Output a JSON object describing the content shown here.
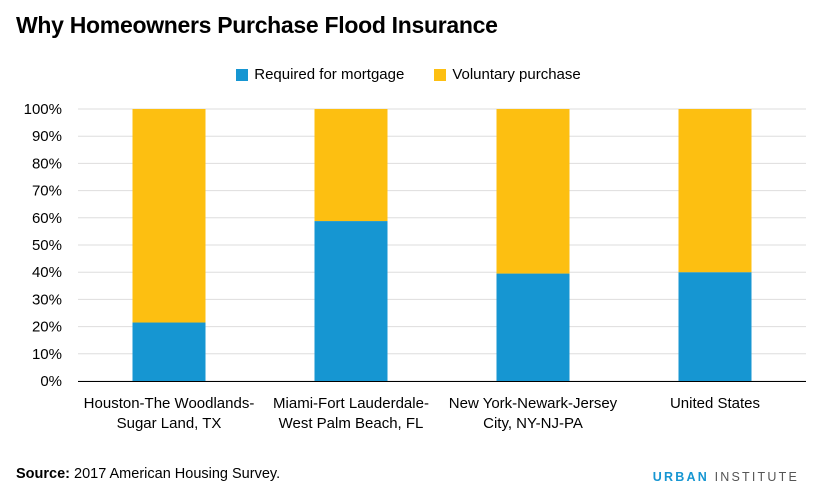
{
  "title": "Why Homeowners Purchase Flood Insurance",
  "legend": [
    {
      "label": "Required for mortgage",
      "color": "#1696d2"
    },
    {
      "label": "Voluntary purchase",
      "color": "#fdbf11"
    }
  ],
  "footer": {
    "source_label": "Source:",
    "source_text": " 2017 American Housing Survey."
  },
  "logo": {
    "part1": "URBAN",
    "part2": " INSTITUTE"
  },
  "chart_data": {
    "type": "bar",
    "stacked": true,
    "title": "Why Homeowners Purchase Flood Insurance",
    "categories": [
      [
        "Houston-The Woodlands-",
        "Sugar Land, TX"
      ],
      [
        "Miami-Fort Lauderdale-",
        "West Palm Beach, FL"
      ],
      [
        "New York-Newark-Jersey",
        "City, NY-NJ-PA"
      ],
      [
        "United States"
      ]
    ],
    "series": [
      {
        "name": "Required for mortgage",
        "color": "#1696d2",
        "values": [
          21.5,
          58.8,
          39.5,
          40
        ]
      },
      {
        "name": "Voluntary purchase",
        "color": "#fdbf11",
        "values": [
          78.5,
          41.2,
          60.5,
          60
        ]
      }
    ],
    "yticks": [
      "0%",
      "10%",
      "20%",
      "30%",
      "40%",
      "50%",
      "60%",
      "70%",
      "80%",
      "90%",
      "100%"
    ],
    "ylim": [
      0,
      100
    ],
    "xlabel": "",
    "ylabel": "",
    "grid": true,
    "legend_position": "top"
  }
}
